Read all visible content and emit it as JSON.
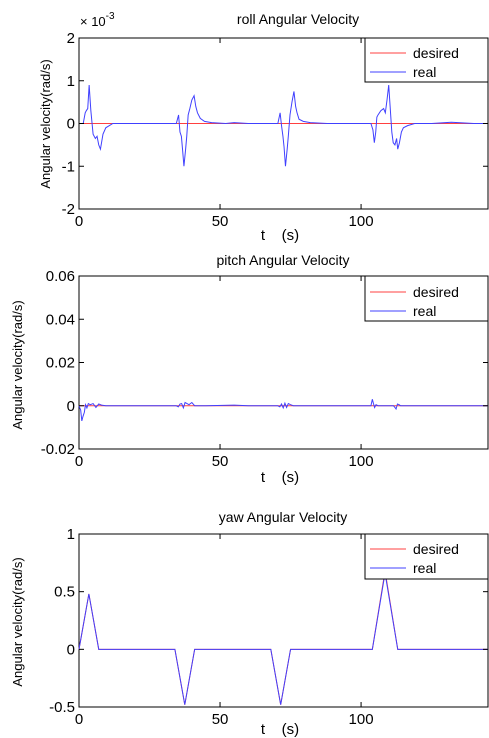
{
  "chart_data": [
    {
      "type": "line",
      "title": "roll Angular Velocity",
      "xlabel": "t    (s)",
      "ylabel": "Angular velocity(rad/s)",
      "xlim": [
        0,
        145
      ],
      "ylim": [
        -2,
        2
      ],
      "y_multiplier": "× 10",
      "y_multiplier_exp": "-3",
      "xticks": [
        0,
        50,
        100
      ],
      "yticks": [
        -2,
        -1,
        0,
        1,
        2
      ],
      "xtick_labels": [
        "0",
        "50",
        "100"
      ],
      "ytick_labels": [
        "-2",
        "-1",
        "0",
        "1",
        "2"
      ],
      "legend": {
        "placement": "top-right",
        "entries": [
          "desired",
          "real"
        ]
      },
      "series": [
        {
          "name": "desired",
          "color": "#ff4040",
          "x": [
            0,
            145
          ],
          "y": [
            0,
            0
          ]
        },
        {
          "name": "real",
          "color": "#4040ff",
          "x": [
            0,
            1.5,
            2.2,
            2.6,
            3.1,
            3.6,
            4.2,
            5.0,
            5.8,
            6.4,
            7.0,
            7.6,
            8.5,
            9.5,
            12,
            20,
            30,
            34.5,
            35.3,
            35.8,
            36.3,
            36.7,
            37.2,
            37.8,
            38.2,
            38.7,
            39.3,
            40.0,
            40.8,
            41.4,
            42.0,
            43.0,
            44.5,
            47,
            52,
            55,
            60,
            65,
            70.5,
            71.3,
            71.8,
            72.3,
            72.7,
            73.2,
            73.8,
            74.2,
            74.8,
            75.5,
            76.2,
            76.8,
            77.3,
            78.0,
            79.5,
            82,
            88,
            95,
            103.5,
            104.2,
            104.7,
            105.2,
            105.6,
            106.0,
            107.0,
            108.0,
            108.6,
            109.2,
            109.8,
            110.3,
            110.9,
            111.4,
            112.0,
            112.6,
            113.0,
            113.6,
            114.3,
            115.0,
            116.5,
            119,
            125,
            132,
            140,
            145
          ],
          "y": [
            0,
            0,
            0.25,
            0.3,
            0.35,
            0.9,
            0.3,
            -0.25,
            -0.35,
            -0.3,
            -0.5,
            -0.6,
            -0.25,
            -0.1,
            0,
            0,
            0,
            0,
            0.2,
            -0.2,
            -0.3,
            -0.6,
            -1.0,
            -0.6,
            -0.3,
            0.2,
            0.35,
            0.55,
            0.65,
            0.4,
            0.25,
            0.12,
            0.05,
            0.02,
            0,
            0.02,
            0,
            0,
            0,
            0.25,
            -0.05,
            -0.3,
            -0.55,
            -1.0,
            -0.6,
            -0.3,
            0.2,
            0.5,
            0.75,
            0.4,
            0.25,
            0.1,
            0.05,
            0.02,
            0,
            0,
            0,
            -0.15,
            -0.45,
            -0.2,
            0.15,
            0.2,
            0.3,
            0.35,
            0.25,
            0.55,
            0.9,
            0.4,
            -0.2,
            -0.45,
            -0.5,
            -0.35,
            -0.6,
            -0.45,
            -0.2,
            -0.1,
            -0.05,
            0,
            0,
            0.03,
            0,
            0
          ]
        }
      ]
    },
    {
      "type": "line",
      "title": "pitch Angular Velocity",
      "xlabel": "t    (s)",
      "ylabel": "Angular velocity(rad/s)",
      "xlim": [
        0,
        145
      ],
      "ylim": [
        -0.02,
        0.06
      ],
      "xticks": [
        0,
        50,
        100
      ],
      "yticks": [
        -0.02,
        0,
        0.02,
        0.04,
        0.06
      ],
      "xtick_labels": [
        "0",
        "50",
        "100"
      ],
      "ytick_labels": [
        "-0.02",
        "0",
        "0.02",
        "0.04",
        "0.06"
      ],
      "legend": {
        "placement": "top-right",
        "entries": [
          "desired",
          "real"
        ]
      },
      "series": [
        {
          "name": "desired",
          "color": "#ff4040",
          "x": [
            0,
            145
          ],
          "y": [
            0,
            0
          ]
        },
        {
          "name": "real",
          "color": "#4040ff",
          "x": [
            0,
            0.6,
            1.0,
            1.4,
            1.9,
            2.3,
            2.8,
            3.3,
            4.0,
            5.0,
            6.0,
            7.0,
            8.0,
            9.5,
            12,
            20,
            34.5,
            35.2,
            35.8,
            36.4,
            37.0,
            37.6,
            38.3,
            39.0,
            40.0,
            41,
            45,
            55,
            60,
            70.5,
            71.2,
            71.8,
            72.4,
            73.0,
            73.6,
            74.2,
            75.0,
            76.0,
            80,
            90,
            103.5,
            104.0,
            104.4,
            104.8,
            105.3,
            106,
            108,
            111.5,
            112.0,
            112.4,
            112.9,
            113.5,
            114,
            116,
            125,
            145
          ],
          "y": [
            0,
            -0.002,
            -0.007,
            -0.005,
            -0.003,
            0.0005,
            -0.001,
            0.001,
            0.0005,
            0.001,
            -0.0008,
            0.0008,
            0.0003,
            0,
            0,
            0,
            0,
            -0.0005,
            0.0008,
            0.001,
            -0.001,
            0.0015,
            0.001,
            0.0005,
            0.0015,
            0,
            0,
            0.0003,
            0,
            0,
            -0.0005,
            0.0008,
            -0.001,
            0.0012,
            -0.0008,
            0.001,
            0.0005,
            0,
            0,
            0,
            0,
            0.003,
            0.001,
            -0.0008,
            0.0005,
            0,
            0,
            0,
            -0.0008,
            -0.0015,
            0.0008,
            0.0005,
            0,
            0,
            0,
            0
          ]
        }
      ]
    },
    {
      "type": "line",
      "title": "yaw Angular Velocity",
      "xlabel": "t    (s)",
      "ylabel": "Angular velocity(rad/s)",
      "xlim": [
        0,
        145
      ],
      "ylim": [
        -0.5,
        1
      ],
      "xticks": [
        0,
        50,
        100
      ],
      "yticks": [
        -0.5,
        0,
        0.5,
        1
      ],
      "xtick_labels": [
        "0",
        "50",
        "100"
      ],
      "ytick_labels": [
        "-0.5",
        "0",
        "0.5",
        "1"
      ],
      "legend": {
        "placement": "top-right",
        "entries": [
          "desired",
          "real"
        ]
      },
      "series": [
        {
          "name": "desired",
          "color": "#ff4040",
          "x": [
            0,
            3.5,
            7,
            34,
            37.5,
            41,
            68,
            71.5,
            75,
            104,
            108.5,
            113,
            145
          ],
          "y": [
            0,
            0.48,
            0,
            0,
            -0.48,
            0,
            0,
            -0.48,
            0,
            0,
            0.68,
            0,
            0
          ]
        },
        {
          "name": "real",
          "color": "#4040ff",
          "x": [
            0,
            3.5,
            7,
            34,
            37.5,
            41,
            68,
            71.5,
            75,
            104,
            108.5,
            113,
            145
          ],
          "y": [
            0,
            0.48,
            0,
            0,
            -0.48,
            0,
            0,
            -0.48,
            0,
            0,
            0.66,
            0,
            0
          ]
        }
      ]
    }
  ]
}
